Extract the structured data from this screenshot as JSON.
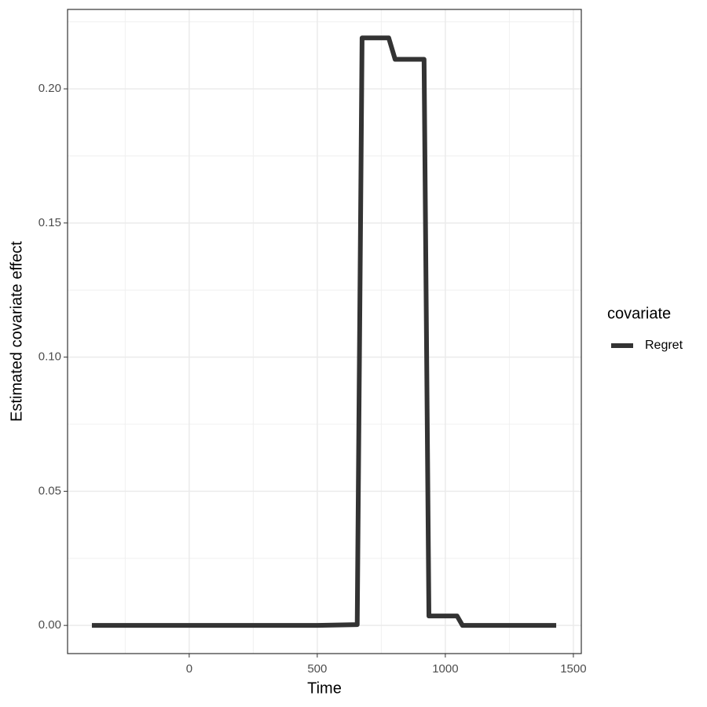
{
  "chart_data": {
    "type": "line",
    "x_label": "Time",
    "y_label": "Estimated covariate effect",
    "x": [
      -380,
      500,
      656,
      675,
      779,
      804,
      917,
      936,
      1046,
      1067,
      1433
    ],
    "series": [
      {
        "name": "Regret",
        "color": "#333333",
        "values": [
          0,
          0,
          0.0003,
          0.219,
          0.219,
          0.211,
          0.211,
          0.0035,
          0.0035,
          0,
          0
        ]
      }
    ],
    "legend_title": "covariate",
    "xlim": [
      -475,
      1531
    ],
    "xticks": [
      0,
      500,
      1000,
      1500
    ],
    "ylim": [
      -0.0105,
      0.2296
    ],
    "yticks": [
      {
        "value": 0,
        "label": "0.00"
      },
      0.05,
      {
        "value": 0.1,
        "label": "0.10"
      },
      0.15,
      {
        "value": 0.2,
        "label": "0.20"
      }
    ],
    "grid": true,
    "legend": "right"
  }
}
